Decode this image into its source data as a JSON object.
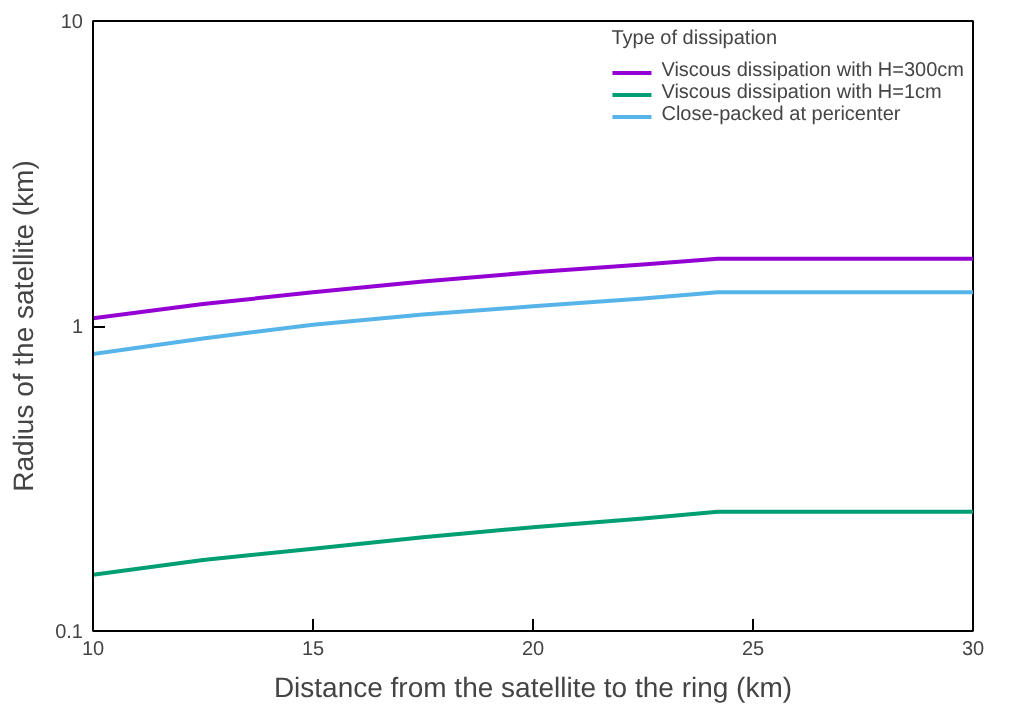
{
  "chart_data": {
    "type": "line",
    "xlabel": "Distance from the satellite to the ring (km)",
    "ylabel": "Radius of the satellite (km)",
    "legend_title": "Type of dissipation",
    "legend": "top right",
    "log": "y",
    "grid": false,
    "xlim": [
      10,
      30
    ],
    "xticks": [
      10,
      15,
      20,
      25,
      30
    ],
    "ylim": [
      0.1,
      10
    ],
    "yticks": [
      0.1,
      1,
      10
    ],
    "x": [
      10,
      12.5,
      15,
      17.5,
      20,
      22.5,
      24.2,
      27,
      30
    ],
    "series": [
      {
        "name": "Viscous dissipation with H=300cm",
        "color": "#9400d3",
        "values": [
          1.06,
          1.18,
          1.29,
          1.4,
          1.5,
          1.59,
          1.66,
          1.66,
          1.66
        ]
      },
      {
        "name": "Viscous dissipation with H=1cm",
        "color": "#009e73",
        "values": [
          0.153,
          0.171,
          0.186,
          0.203,
          0.219,
          0.234,
          0.246,
          0.246,
          0.246
        ]
      },
      {
        "name": "Close-packed at pericenter",
        "color": "#56b4e9",
        "values": [
          0.81,
          0.91,
          1.01,
          1.09,
          1.16,
          1.23,
          1.29,
          1.29,
          1.29
        ]
      }
    ]
  }
}
